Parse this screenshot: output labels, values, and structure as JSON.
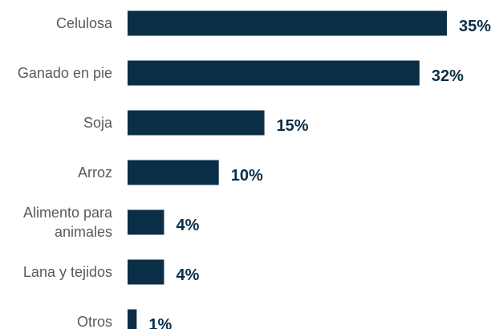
{
  "chart_data": {
    "type": "bar",
    "orientation": "horizontal",
    "categories": [
      "Celulosa",
      "Ganado en pie",
      "Soja",
      "Arroz",
      "Alimento para animales",
      "Lana y tejidos",
      "Otros"
    ],
    "category_lines": [
      [
        "Celulosa"
      ],
      [
        "Ganado en pie"
      ],
      [
        "Soja"
      ],
      [
        "Arroz"
      ],
      [
        "Alimento para",
        "animales"
      ],
      [
        "Lana y tejidos"
      ],
      [
        "Otros"
      ]
    ],
    "values": [
      35,
      32,
      15,
      10,
      4,
      4,
      1
    ],
    "value_labels": [
      "35%",
      "32%",
      "15%",
      "10%",
      "4%",
      "4%",
      "1%"
    ],
    "unit": "%",
    "title": "",
    "xlabel": "",
    "ylabel": "",
    "xlim": [
      0,
      35
    ],
    "grid": false,
    "legend": "none",
    "bar_color": "#0b2e47"
  }
}
